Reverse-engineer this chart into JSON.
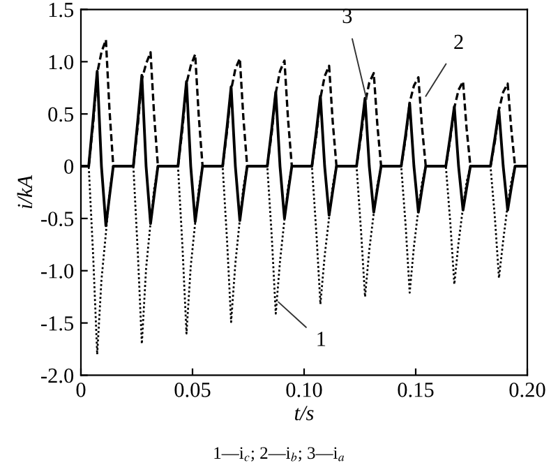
{
  "chart_data": {
    "type": "line",
    "xlabel": "t/s",
    "ylabel": "i/kA",
    "x": [
      0,
      0.0035,
      0.0055,
      0.0073,
      0.0092,
      0.0112,
      0.0128,
      0.0145,
      0.0235,
      0.0255,
      0.0273,
      0.0292,
      0.0312,
      0.0328,
      0.0345,
      0.0435,
      0.0455,
      0.0473,
      0.0492,
      0.0512,
      0.0528,
      0.0545,
      0.0635,
      0.0655,
      0.0673,
      0.0692,
      0.0712,
      0.0728,
      0.0745,
      0.0835,
      0.0855,
      0.0873,
      0.0892,
      0.0912,
      0.0928,
      0.0945,
      0.1035,
      0.1055,
      0.1073,
      0.1092,
      0.1112,
      0.1128,
      0.1145,
      0.1235,
      0.1255,
      0.1273,
      0.1292,
      0.1312,
      0.1328,
      0.1345,
      0.1435,
      0.1455,
      0.1473,
      0.1492,
      0.1512,
      0.1528,
      0.1545,
      0.1635,
      0.1655,
      0.1673,
      0.1692,
      0.1712,
      0.1728,
      0.1745,
      0.1835,
      0.1855,
      0.1873,
      0.1892,
      0.1912,
      0.1928,
      0.1945,
      0.2
    ],
    "series": [
      {
        "color": "#000000",
        "line_style": "solid",
        "values": [
          0,
          0,
          0.46,
          0.91,
          0,
          -0.57,
          -0.29,
          0,
          0,
          0.44,
          0.87,
          0,
          -0.55,
          -0.28,
          0,
          0,
          0.41,
          0.81,
          0,
          -0.53,
          -0.27,
          0,
          0,
          0.38,
          0.76,
          0,
          -0.52,
          -0.26,
          0,
          0,
          0.36,
          0.71,
          0,
          -0.5,
          -0.25,
          0,
          0,
          0.34,
          0.67,
          0,
          -0.47,
          -0.24,
          0,
          0,
          0.33,
          0.65,
          0,
          -0.44,
          -0.22,
          0,
          0,
          0.3,
          0.6,
          0,
          -0.44,
          -0.22,
          0,
          0,
          0.29,
          0.57,
          0,
          -0.42,
          -0.21,
          0,
          0,
          0.27,
          0.53,
          0,
          -0.42,
          -0.21,
          0,
          0
        ]
      },
      {
        "color": "#000000",
        "line_style": "dashed",
        "values": [
          0,
          0,
          0.41,
          0.89,
          1.09,
          1.21,
          0.54,
          0,
          0,
          0.39,
          0.83,
          0.98,
          1.09,
          0.49,
          0,
          0,
          0.36,
          0.79,
          0.96,
          1.07,
          0.48,
          0,
          0,
          0.34,
          0.73,
          0.93,
          1.03,
          0.46,
          0,
          0,
          0.32,
          0.7,
          0.91,
          1.01,
          0.45,
          0,
          0,
          0.3,
          0.65,
          0.86,
          0.96,
          0.43,
          0,
          0,
          0.29,
          0.6,
          0.8,
          0.89,
          0.4,
          0,
          0,
          0.27,
          0.61,
          0.77,
          0.85,
          0.38,
          0,
          0,
          0.26,
          0.56,
          0.73,
          0.81,
          0.36,
          0,
          0,
          0.24,
          0.54,
          0.71,
          0.79,
          0.36,
          0,
          0
        ]
      },
      {
        "color": "#000000",
        "line_style": "dotted",
        "values": [
          0,
          0,
          -0.86,
          -1.8,
          -1.09,
          -0.64,
          -0.26,
          0,
          0,
          -0.83,
          -1.7,
          -0.98,
          -0.54,
          -0.22,
          0,
          0,
          -0.77,
          -1.6,
          -0.96,
          -0.54,
          -0.22,
          0,
          0,
          -0.72,
          -1.49,
          -0.93,
          -0.51,
          -0.2,
          0,
          0,
          -0.67,
          -1.41,
          -0.91,
          -0.51,
          -0.2,
          0,
          0,
          -0.64,
          -1.32,
          -0.86,
          -0.49,
          -0.19,
          0,
          0,
          -0.62,
          -1.25,
          -0.8,
          -0.45,
          -0.18,
          0,
          0,
          -0.57,
          -1.21,
          -0.77,
          -0.41,
          -0.16,
          0,
          0,
          -0.54,
          -1.13,
          -0.73,
          -0.39,
          -0.15,
          0,
          0,
          -0.5,
          -1.07,
          -0.71,
          -0.37,
          -0.15,
          0,
          0
        ]
      }
    ],
    "xlim": [
      0,
      0.2
    ],
    "xticks": [
      0,
      {
        "value": 0.05,
        "label": "0.05"
      },
      {
        "value": 0.1,
        "label": "0.10"
      },
      {
        "value": 0.15,
        "label": "0.15"
      },
      {
        "value": 0.2,
        "label": "0.20"
      }
    ],
    "ylim": [
      -2.0,
      1.5
    ],
    "yticks": [
      {
        "value": -2.0,
        "label": "-2.0"
      },
      {
        "value": -1.5,
        "label": "-1.5"
      },
      {
        "value": -1.0,
        "label": "-1.0"
      },
      {
        "value": -0.5,
        "label": "-0.5"
      },
      0,
      {
        "value": 0.5,
        "label": "0.5"
      },
      {
        "value": 1.0,
        "label": "1.0"
      },
      {
        "value": 1.5,
        "label": "1.5"
      }
    ],
    "grid": false,
    "legend": false,
    "annotations": [
      {
        "text": "1",
        "x": 0.0885,
        "y": -1.3
      },
      {
        "text": "3",
        "x": 0.128,
        "y": 0.64
      },
      {
        "text": "2",
        "x": 0.1545,
        "y": 0.67
      },
      "1—i$_{c}$; 2—i$_{b}$; 3—i$_{a}$"
    ]
  }
}
